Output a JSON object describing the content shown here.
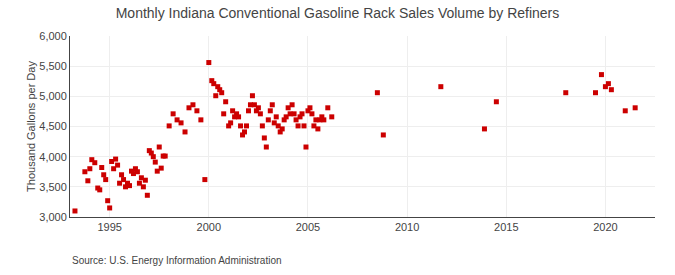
{
  "chart_data": {
    "type": "scatter",
    "title": "Monthly Indiana Conventional Gasoline Rack Sales Volume by Refiners",
    "ylabel": "Thousand Gallons per Day",
    "source": "Source: U.S. Energy Information Administration",
    "color": "#cc0000",
    "marker": "square",
    "grid": true,
    "xlim": [
      1993.0,
      2022.5
    ],
    "ylim": [
      3000,
      6000
    ],
    "xticks": [
      1995,
      2000,
      2005,
      2010,
      2015,
      2020
    ],
    "yticks": [
      {
        "value": 3000,
        "label": "3,000"
      },
      {
        "value": 3500,
        "label": "3,500"
      },
      {
        "value": 4000,
        "label": "4,000"
      },
      {
        "value": 4500,
        "label": "4,500"
      },
      {
        "value": 5000,
        "label": "5,000"
      },
      {
        "value": 5500,
        "label": "5,500"
      },
      {
        "value": 6000,
        "label": "6,000"
      }
    ],
    "x": [
      1993.25,
      1993.75,
      1993.9,
      1994.0,
      1994.1,
      1994.25,
      1994.4,
      1994.5,
      1994.6,
      1994.7,
      1994.8,
      1994.9,
      1995.0,
      1995.1,
      1995.2,
      1995.3,
      1995.4,
      1995.5,
      1995.6,
      1995.7,
      1995.8,
      1995.9,
      1996.0,
      1996.1,
      1996.2,
      1996.3,
      1996.4,
      1996.5,
      1996.6,
      1996.7,
      1996.8,
      1996.9,
      1997.0,
      1997.1,
      1997.2,
      1997.3,
      1997.4,
      1997.5,
      1997.6,
      1997.7,
      1997.8,
      1998.0,
      1998.2,
      1998.4,
      1998.6,
      1998.8,
      1999.0,
      1999.2,
      1999.4,
      1999.6,
      1999.8,
      2000.0,
      2000.15,
      2000.25,
      2000.35,
      2000.45,
      2000.55,
      2000.65,
      2000.75,
      2000.85,
      2001.0,
      2001.1,
      2001.2,
      2001.3,
      2001.4,
      2001.5,
      2001.6,
      2001.7,
      2001.8,
      2001.9,
      2002.0,
      2002.1,
      2002.2,
      2002.3,
      2002.4,
      2002.5,
      2002.6,
      2002.7,
      2002.8,
      2002.9,
      2003.0,
      2003.1,
      2003.2,
      2003.3,
      2003.4,
      2003.5,
      2003.6,
      2003.7,
      2003.8,
      2003.9,
      2004.0,
      2004.1,
      2004.2,
      2004.3,
      2004.4,
      2004.5,
      2004.6,
      2004.7,
      2004.8,
      2004.9,
      2005.0,
      2005.1,
      2005.2,
      2005.3,
      2005.4,
      2005.5,
      2005.6,
      2005.7,
      2005.8,
      2006.0,
      2006.2,
      2008.5,
      2008.8,
      2011.7,
      2013.9,
      2014.5,
      2018.0,
      2019.5,
      2019.8,
      2020.0,
      2020.15,
      2020.3,
      2021.0,
      2021.5
    ],
    "values": [
      3100,
      3750,
      3600,
      3800,
      3950,
      3900,
      3480,
      3450,
      3820,
      3700,
      3620,
      3270,
      3150,
      3920,
      3800,
      3960,
      3860,
      3560,
      3700,
      3620,
      3500,
      3560,
      3520,
      3760,
      3720,
      3800,
      3750,
      3560,
      3650,
      3500,
      3610,
      3360,
      4100,
      4060,
      4000,
      3910,
      3760,
      4160,
      3810,
      4010,
      4010,
      4510,
      4710,
      4610,
      4560,
      4410,
      4810,
      4860,
      4760,
      4610,
      3620,
      5560,
      5260,
      5210,
      5010,
      5160,
      5110,
      5060,
      4710,
      4910,
      4510,
      4560,
      4760,
      4660,
      4710,
      4660,
      4510,
      4360,
      4410,
      4510,
      4760,
      4860,
      5010,
      4860,
      4760,
      4810,
      4710,
      4510,
      4310,
      4160,
      4610,
      4760,
      4860,
      4560,
      4660,
      4510,
      4410,
      4460,
      4610,
      4660,
      4810,
      4710,
      4860,
      4710,
      4610,
      4510,
      4660,
      4710,
      4510,
      4160,
      4760,
      4810,
      4710,
      4510,
      4610,
      4460,
      4610,
      4660,
      4610,
      4810,
      4660,
      5060,
      4360,
      5160,
      4460,
      4910,
      5060,
      5060,
      5360,
      5160,
      5210,
      5110,
      4760,
      4810
    ]
  }
}
